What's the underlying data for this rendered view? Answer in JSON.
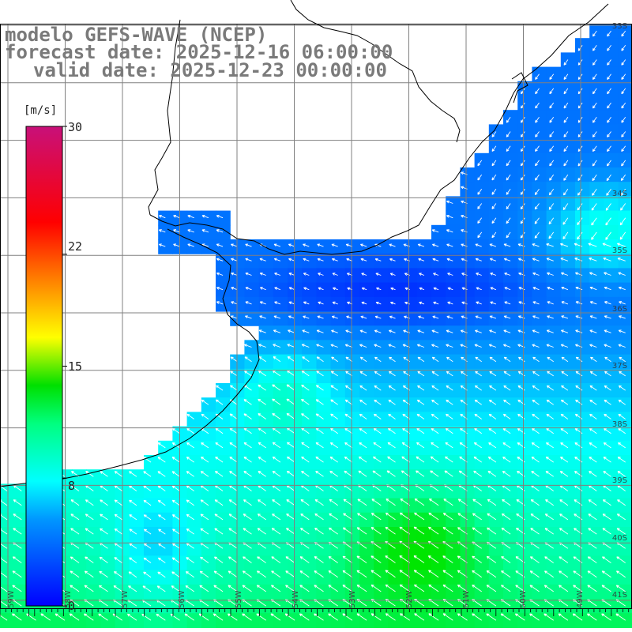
{
  "title": {
    "line1": "modelo GEFS-WAVE (NCEP)",
    "line2": "forecast date: 2025-12-16 06:00:00",
    "line3": "valid date: 2025-12-23 00:00:00"
  },
  "colorbar": {
    "unit": "[m/s]",
    "min": 0,
    "max": 30,
    "ticks": [
      "30",
      "22",
      "15",
      "8",
      "0"
    ],
    "tick_values": [
      30,
      22,
      15,
      8,
      0
    ]
  },
  "lat_labels": [
    "33S",
    "34S",
    "35S",
    "36S",
    "37S",
    "38S",
    "39S",
    "40S",
    "41S"
  ],
  "lon_labels": [
    "59W",
    "58W",
    "57W",
    "56W",
    "55W",
    "54W",
    "53W",
    "52W",
    "51W",
    "50W",
    "49W"
  ],
  "colors": {
    "land": "#ffffff",
    "coast": "#000000",
    "grid": "#808080",
    "arrow": "#ffffff",
    "title_text": "#7a7a7a"
  }
}
